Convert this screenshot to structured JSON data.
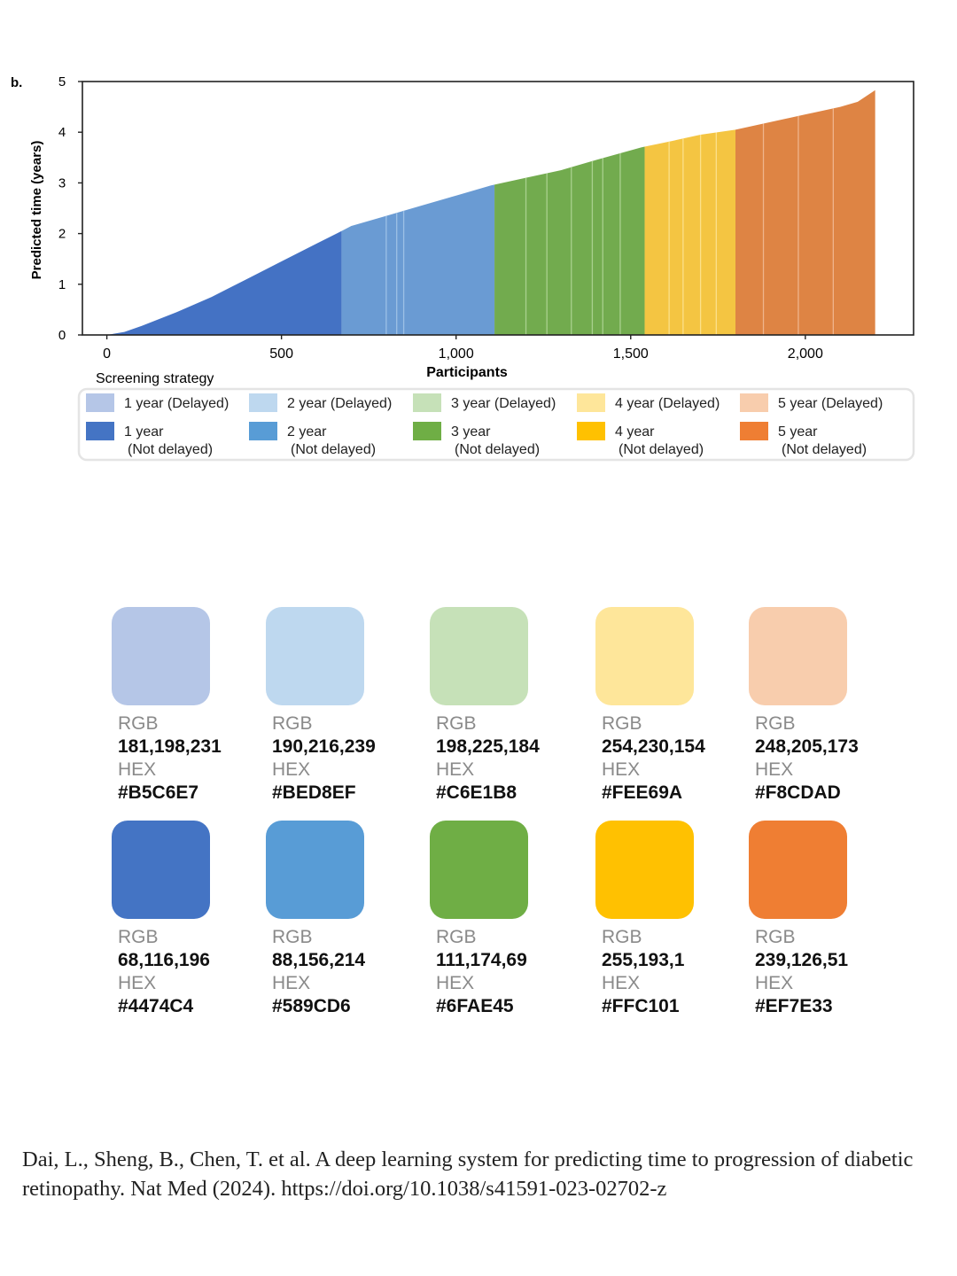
{
  "panel_label": "b.",
  "chart_data": {
    "type": "area",
    "xlabel": "Participants",
    "ylabel": "Predicted time (years)",
    "xlim": [
      -70,
      2310
    ],
    "ylim": [
      0,
      5
    ],
    "x_ticks": [
      0,
      500,
      1000,
      1500,
      2000
    ],
    "x_tick_labels": [
      "0",
      "500",
      "1,000",
      "1,500",
      "2,000"
    ],
    "y_ticks": [
      0,
      1,
      2,
      3,
      4,
      5
    ],
    "y_tick_labels": [
      "0",
      "1",
      "2",
      "3",
      "4",
      "5"
    ],
    "curve_points": [
      {
        "x": 0,
        "y": 0.0
      },
      {
        "x": 50,
        "y": 0.06
      },
      {
        "x": 100,
        "y": 0.18
      },
      {
        "x": 200,
        "y": 0.45
      },
      {
        "x": 300,
        "y": 0.75
      },
      {
        "x": 400,
        "y": 1.1
      },
      {
        "x": 500,
        "y": 1.45
      },
      {
        "x": 600,
        "y": 1.8
      },
      {
        "x": 672,
        "y": 2.05
      },
      {
        "x": 700,
        "y": 2.15
      },
      {
        "x": 800,
        "y": 2.35
      },
      {
        "x": 900,
        "y": 2.55
      },
      {
        "x": 1000,
        "y": 2.75
      },
      {
        "x": 1100,
        "y": 2.95
      },
      {
        "x": 1200,
        "y": 3.1
      },
      {
        "x": 1300,
        "y": 3.25
      },
      {
        "x": 1400,
        "y": 3.45
      },
      {
        "x": 1530,
        "y": 3.7
      },
      {
        "x": 1600,
        "y": 3.8
      },
      {
        "x": 1700,
        "y": 3.95
      },
      {
        "x": 1800,
        "y": 4.05
      },
      {
        "x": 1900,
        "y": 4.2
      },
      {
        "x": 2000,
        "y": 4.35
      },
      {
        "x": 2100,
        "y": 4.5
      },
      {
        "x": 2150,
        "y": 4.6
      },
      {
        "x": 2200,
        "y": 4.83
      }
    ],
    "segments": [
      {
        "name": "1 year",
        "x_start": 0,
        "x_end": 672,
        "color": "#4472C4"
      },
      {
        "name": "2 year",
        "x_start": 672,
        "x_end": 1110,
        "color": "#6A9BD3"
      },
      {
        "name": "3 year",
        "x_start": 1110,
        "x_end": 1540,
        "color": "#72AB4E"
      },
      {
        "name": "4 year",
        "x_start": 1540,
        "x_end": 1800,
        "color": "#F4C542"
      },
      {
        "name": "5 year",
        "x_start": 1800,
        "x_end": 2200,
        "color": "#DE8444"
      }
    ],
    "stripes": [
      {
        "x": 800,
        "color": "#9CC0E6"
      },
      {
        "x": 830,
        "color": "#9CC0E6"
      },
      {
        "x": 850,
        "color": "#9CC0E6"
      },
      {
        "x": 1200,
        "color": "#A9D08E"
      },
      {
        "x": 1260,
        "color": "#A9D08E"
      },
      {
        "x": 1330,
        "color": "#A9D08E"
      },
      {
        "x": 1390,
        "color": "#A9D08E"
      },
      {
        "x": 1420,
        "color": "#A9D08E"
      },
      {
        "x": 1470,
        "color": "#A9D08E"
      },
      {
        "x": 1610,
        "color": "#FCE08A"
      },
      {
        "x": 1650,
        "color": "#FCE08A"
      },
      {
        "x": 1700,
        "color": "#FCE08A"
      },
      {
        "x": 1745,
        "color": "#FCE08A"
      },
      {
        "x": 1880,
        "color": "#EFB48C"
      },
      {
        "x": 1980,
        "color": "#EFB48C"
      },
      {
        "x": 2080,
        "color": "#EFB48C"
      }
    ],
    "legend": {
      "title": "Screening strategy",
      "placement": "bottom",
      "items": [
        {
          "label": "1 year (Delayed)",
          "color": "#B5C6E7"
        },
        {
          "label": "2 year (Delayed)",
          "color": "#BED8EF"
        },
        {
          "label": "3 year (Delayed)",
          "color": "#C6E1B8"
        },
        {
          "label": "4 year (Delayed)",
          "color": "#FEE69A"
        },
        {
          "label": "5 year (Delayed)",
          "color": "#F8CDAD"
        },
        {
          "label": "1 year",
          "sublabel": "(Not delayed)",
          "color": "#4474C4"
        },
        {
          "label": "2 year",
          "sublabel": "(Not delayed)",
          "color": "#589CD6"
        },
        {
          "label": "3 year",
          "sublabel": "(Not delayed)",
          "color": "#6FAE45"
        },
        {
          "label": "4 year",
          "sublabel": "(Not delayed)",
          "color": "#FFC101"
        },
        {
          "label": "5 year",
          "sublabel": "(Not delayed)",
          "color": "#EF7E33"
        }
      ]
    }
  },
  "palette": {
    "rgb_label": "RGB",
    "hex_label": "HEX",
    "swatches": [
      {
        "rgb": "181,198,231",
        "hex": "#B5C6E7"
      },
      {
        "rgb": "190,216,239",
        "hex": "#BED8EF"
      },
      {
        "rgb": "198,225,184",
        "hex": "#C6E1B8"
      },
      {
        "rgb": "254,230,154",
        "hex": "#FEE69A"
      },
      {
        "rgb": "248,205,173",
        "hex": "#F8CDAD"
      },
      {
        "rgb": "68,116,196",
        "hex": "#4474C4"
      },
      {
        "rgb": "88,156,214",
        "hex": "#589CD6"
      },
      {
        "rgb": "111,174,69",
        "hex": "#6FAE45"
      },
      {
        "rgb": "255,193,1",
        "hex": "#FFC101"
      },
      {
        "rgb": "239,126,51",
        "hex": "#EF7E33"
      }
    ]
  },
  "citation": {
    "text": "Dai, L., Sheng, B., Chen, T. et al. A deep learning system for predicting time to progression of diabetic retinopathy. Nat Med (2024). https://doi.org/10.1038/s41591-023-02702-z"
  }
}
